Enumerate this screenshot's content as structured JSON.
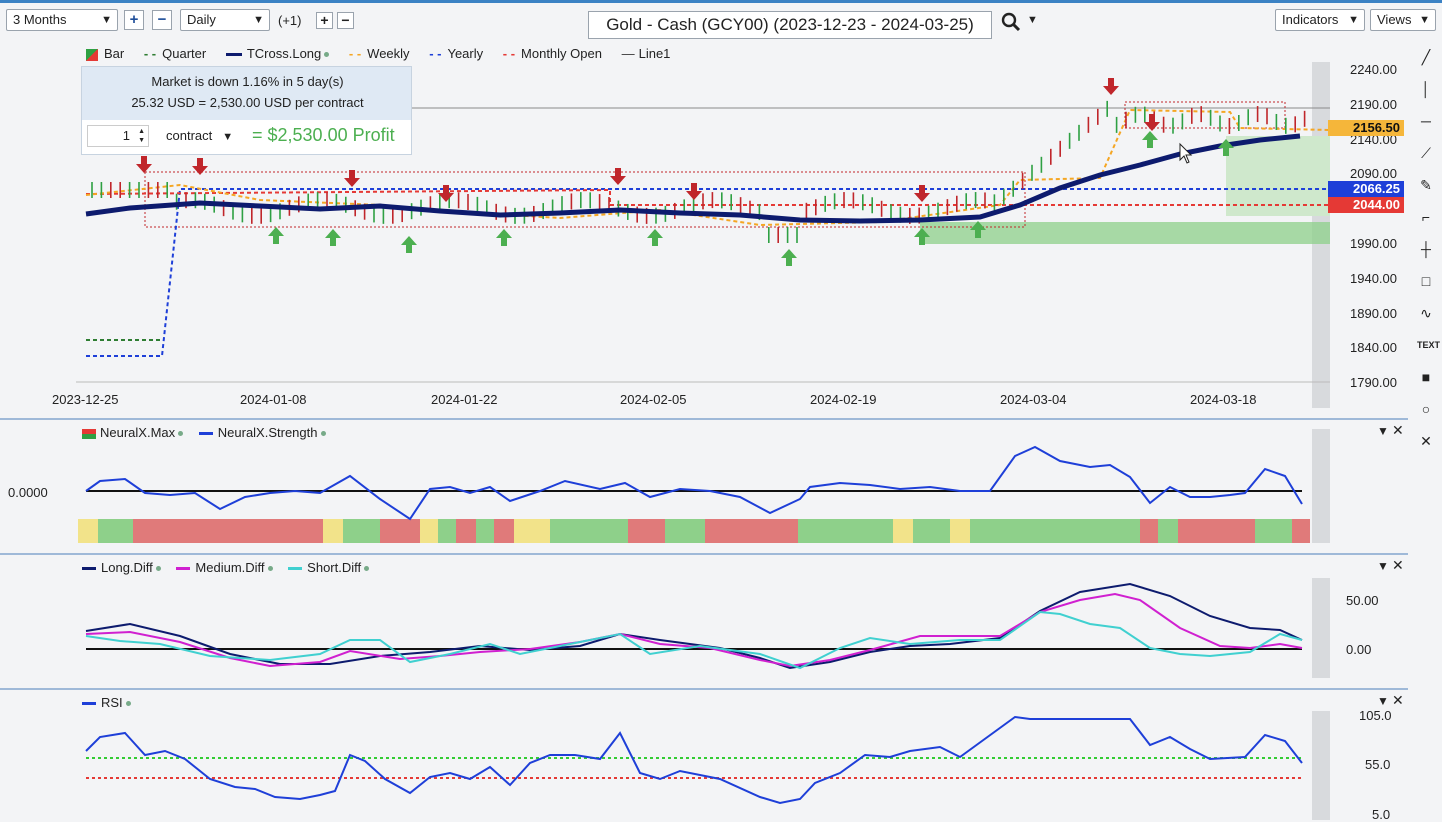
{
  "toolbar": {
    "range_select": "3 Months",
    "interval_select": "Daily",
    "offset_label": "(+1)",
    "chart_title": "Gold - Cash (GCY00) (2023-12-23 - 2024-03-25)",
    "indicators_label": "Indicators",
    "views_label": "Views"
  },
  "legend_main": [
    {
      "label": "Bar",
      "color": "#e53935"
    },
    {
      "label": "Quarter",
      "color": "#2e7d32"
    },
    {
      "label": "TCross.Long",
      "color": "#0d1b6e"
    },
    {
      "label": "Weekly",
      "color": "#f5a623"
    },
    {
      "label": "Yearly",
      "color": "#1e3fd8"
    },
    {
      "label": "Monthly Open",
      "color": "#e53935"
    },
    {
      "label": "Line1",
      "color": "#333333"
    }
  ],
  "popup": {
    "line1": "Market is down 1.16% in 5 day(s)",
    "line2": "25.32 USD = 2,530.00 USD per contract",
    "quantity": "1",
    "unit": "contract",
    "profit": "= $2,530.00 Profit"
  },
  "price_axis": [
    "2240.00",
    "2190.00",
    "2140.00",
    "2090.00",
    "2040.00",
    "1990.00",
    "1940.00",
    "1890.00",
    "1840.00",
    "1790.00"
  ],
  "price_tags": {
    "last": "2156.50",
    "yearly": "2066.25",
    "monthly_open": "2044.00"
  },
  "date_axis": [
    "2023-12-25",
    "2024-01-08",
    "2024-01-22",
    "2024-02-05",
    "2024-02-19",
    "2024-03-04",
    "2024-03-18"
  ],
  "neural": {
    "legend": [
      {
        "label": "NeuralX.Max",
        "color": "#e53935"
      },
      {
        "label": "NeuralX.Strength",
        "color": "#1e3fd8"
      }
    ],
    "axis_label": "0.0000"
  },
  "diff": {
    "legend": [
      {
        "label": "Long.Diff",
        "color": "#0d1b6e"
      },
      {
        "label": "Medium.Diff",
        "color": "#d020d0"
      },
      {
        "label": "Short.Diff",
        "color": "#40d0d0"
      }
    ],
    "axis": [
      "50.00",
      "0.00"
    ]
  },
  "rsi": {
    "legend": [
      {
        "label": "RSI",
        "color": "#1e3fd8"
      }
    ],
    "axis": [
      "105.0",
      "55.0",
      "5.0"
    ]
  },
  "colors": {
    "up_bar": "#2ea043",
    "down_bar": "#c0262b",
    "tcross": "#0d1b6e",
    "yearly": "#1e3fd8",
    "monthly_open": "#e53935",
    "weekly": "#f5a623",
    "green_zone": "#8ed08a"
  },
  "chart_data": [
    {
      "type": "line",
      "title": "Gold - Cash (GCY00) (2023-12-23 - 2024-03-25)",
      "x": [
        "2023-12-25",
        "2024-01-08",
        "2024-01-22",
        "2024-02-05",
        "2024-02-19",
        "2024-03-04",
        "2024-03-18"
      ],
      "ylim": [
        1790,
        2240
      ],
      "series": [
        {
          "name": "TCross.Long",
          "values": [
            2030,
            2050,
            2040,
            2035,
            2025,
            2060,
            2125
          ]
        },
        {
          "name": "Yearly",
          "values": [
            1825,
            2066.25,
            2066.25,
            2066.25,
            2066.25,
            2066.25,
            2066.25
          ]
        },
        {
          "name": "Monthly Open",
          "values": [
            2075,
            2075,
            2075,
            2044,
            2044,
            2044,
            2044
          ]
        }
      ],
      "last_price": 2156.5
    },
    {
      "type": "line",
      "series": [
        {
          "name": "NeuralX.Strength",
          "values": [
            0,
            0.5,
            -0.3,
            0.2,
            0.1,
            -0.2,
            0.6,
            -0.5,
            0,
            0.9,
            0.4,
            -0.2,
            0.3,
            -0.5
          ]
        }
      ]
    },
    {
      "type": "line",
      "ylim": [
        -20,
        75
      ],
      "series": [
        {
          "name": "Long.Diff",
          "values": [
            20,
            5,
            -15,
            0,
            -10,
            5,
            0,
            -15,
            0,
            20,
            65,
            25,
            10
          ]
        },
        {
          "name": "Medium.Diff",
          "values": [
            18,
            0,
            -15,
            -5,
            0,
            10,
            -5,
            -15,
            10,
            15,
            55,
            5,
            5
          ]
        },
        {
          "name": "Short.Diff",
          "values": [
            15,
            10,
            -10,
            5,
            0,
            15,
            -5,
            -15,
            15,
            10,
            25,
            0,
            10
          ]
        }
      ]
    },
    {
      "type": "line",
      "ylim": [
        5,
        105
      ],
      "series": [
        {
          "name": "RSI",
          "values": [
            65,
            45,
            25,
            55,
            30,
            50,
            60,
            40,
            25,
            60,
            95,
            95,
            65,
            55
          ]
        }
      ]
    }
  ]
}
